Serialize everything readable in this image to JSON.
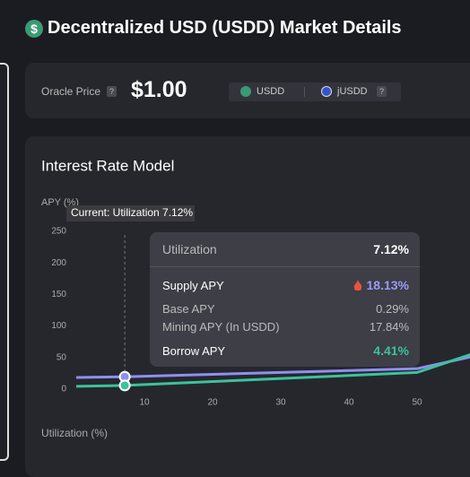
{
  "header": {
    "icon": "$",
    "title": "Decentralized USD (USDD) Market Details"
  },
  "oracle": {
    "label": "Oracle Price",
    "help": "?",
    "price": "$1.00",
    "token": "USDD",
    "jtoken": "jUSDD",
    "jtoken_help": "?"
  },
  "chart_data": {
    "type": "line",
    "title": "Interest Rate Model",
    "y_label": "APY (%)",
    "x_label": "Utilization (%)",
    "x": [
      0,
      7.12,
      50,
      58
    ],
    "series": [
      {
        "name": "Supply APY",
        "color": "#8f8ff0",
        "values": [
          17,
          18.13,
          31,
          50
        ]
      },
      {
        "name": "Borrow APY",
        "color": "#3cc29c",
        "values": [
          3,
          4.41,
          25,
          54
        ]
      }
    ],
    "xlim": [
      0,
      58
    ],
    "ylim": [
      0,
      250
    ],
    "xticks": [
      10,
      20,
      30,
      40,
      50
    ],
    "yticks": [
      0,
      50,
      100,
      150,
      200,
      250
    ],
    "current": {
      "x": 7.12,
      "label": "Current: Utilization 7.12%"
    }
  },
  "tooltip": {
    "title": "Utilization",
    "value": "7.12%",
    "supply_value": "18.13%",
    "base_label": "Base APY",
    "base_value": "0.29%",
    "mining_label": "Mining APY (In USDD)",
    "mining_value": "17.84%",
    "borrow_value": "4.41%"
  }
}
